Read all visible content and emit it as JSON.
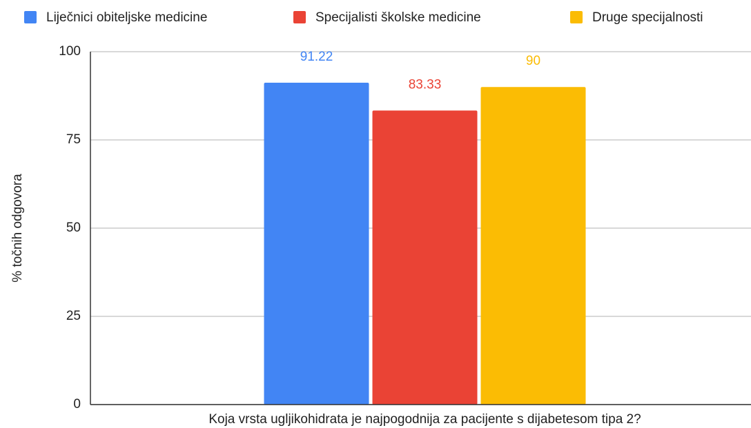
{
  "chart_data": {
    "type": "bar",
    "categories": [
      "Koja vrsta ugljikohidrata je najpogodnija za pacijente s dijabetesom tipa 2?"
    ],
    "y_label": "% točnih odgovora",
    "series": [
      {
        "name": "Liječnici obiteljske medicine",
        "color": "#4285f4",
        "values": [
          91.22
        ]
      },
      {
        "name": "Specijalisti školske medicine",
        "color": "#ea4335",
        "values": [
          83.33
        ]
      },
      {
        "name": "Druge specijalnosti",
        "color": "#fbbc04",
        "values": [
          90
        ]
      }
    ],
    "ylim": [
      0,
      100
    ],
    "yticks": [
      0,
      25,
      50,
      75,
      100
    ],
    "grid": true,
    "legend": "top"
  }
}
